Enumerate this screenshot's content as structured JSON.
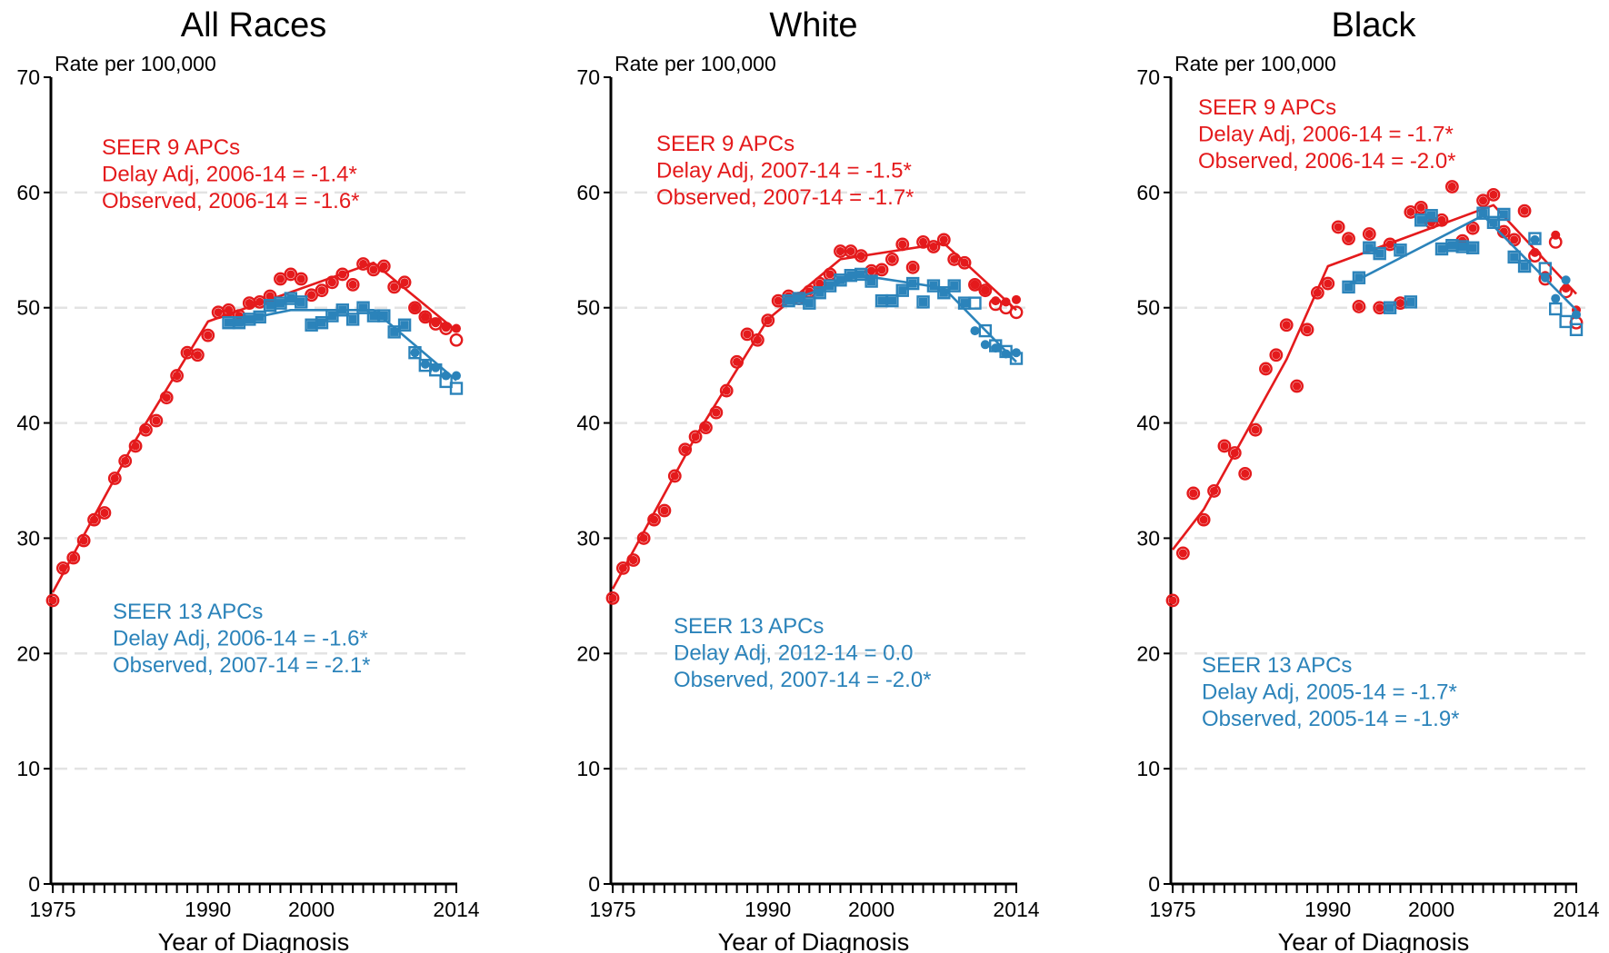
{
  "chart_data": [
    {
      "type": "line",
      "title": "All Races",
      "ylabel": "Rate per 100,000",
      "xlabel": "Year of Diagnosis",
      "xlim": [
        1975,
        2014
      ],
      "ylim": [
        0,
        70
      ],
      "x_ticks": [
        "1975",
        "1990",
        "2000",
        "2014"
      ],
      "y_ticks": [
        "0",
        "10",
        "20",
        "30",
        "40",
        "50",
        "60",
        "70"
      ],
      "grid": true,
      "colors": {
        "seer9": "#e41a1c",
        "seer13": "#2b83ba"
      },
      "annotations": {
        "seer9": [
          "SEER 9 APCs",
          "Delay Adj, 2006-14 = -1.4*",
          "Observed, 2006-14 = -1.6*"
        ],
        "seer13": [
          "SEER 13 APCs",
          "Delay Adj, 2006-14 = -1.6*",
          "Observed, 2007-14 = -2.1*"
        ]
      },
      "series": [
        {
          "key": "seer9_observed",
          "marker": "circle",
          "x": [
            1975,
            1976,
            1977,
            1978,
            1979,
            1980,
            1981,
            1982,
            1983,
            1984,
            1985,
            1986,
            1987,
            1988,
            1989,
            1990,
            1991,
            1992,
            1993,
            1994,
            1995,
            1996,
            1997,
            1998,
            1999,
            2000,
            2001,
            2002,
            2003,
            2004,
            2005,
            2006,
            2007,
            2008,
            2009,
            2010,
            2011,
            2012,
            2013,
            2014
          ],
          "y": [
            24.6,
            27.4,
            28.3,
            29.8,
            31.6,
            32.2,
            35.2,
            36.7,
            38.0,
            39.4,
            40.2,
            42.2,
            44.1,
            46.1,
            45.9,
            47.6,
            49.6,
            49.8,
            49.3,
            50.4,
            50.5,
            51.0,
            52.5,
            52.9,
            52.5,
            51.1,
            51.5,
            52.2,
            52.9,
            52.0,
            53.8,
            53.3,
            53.6,
            51.8,
            52.2,
            50.0,
            49.2,
            48.6,
            48.2,
            47.2
          ]
        },
        {
          "key": "seer9_delay_adj",
          "marker": "dot",
          "x": [
            2010,
            2011,
            2012,
            2013,
            2014
          ],
          "y": [
            50.0,
            49.2,
            48.7,
            48.3,
            48.2
          ]
        },
        {
          "key": "seer9_fit",
          "marker": "none",
          "x": [
            1975,
            1983,
            1990,
            2006,
            2014
          ],
          "y": [
            25.3,
            38.5,
            48.8,
            53.9,
            48.0
          ]
        },
        {
          "key": "seer13_observed",
          "marker": "square",
          "x": [
            1992,
            1993,
            1994,
            1995,
            1996,
            1997,
            1998,
            1999,
            2000,
            2001,
            2002,
            2003,
            2004,
            2005,
            2006,
            2007,
            2008,
            2009,
            2010,
            2011,
            2012,
            2013,
            2014
          ],
          "y": [
            48.7,
            48.7,
            49.0,
            49.2,
            50.2,
            50.4,
            50.8,
            50.5,
            48.5,
            48.7,
            49.3,
            49.8,
            49.0,
            50.0,
            49.3,
            49.3,
            47.9,
            48.5,
            46.1,
            45.0,
            44.6,
            43.6,
            43.0
          ]
        },
        {
          "key": "seer13_delay_adj",
          "marker": "dot",
          "x": [
            2010,
            2011,
            2012,
            2013,
            2014
          ],
          "y": [
            46.1,
            45.1,
            44.8,
            44.1,
            44.1
          ]
        },
        {
          "key": "seer13_fit",
          "marker": "none",
          "x": [
            1992,
            1998,
            2006,
            2014
          ],
          "y": [
            48.7,
            49.8,
            49.8,
            43.7
          ]
        }
      ]
    },
    {
      "type": "line",
      "title": "White",
      "ylabel": "Rate per 100,000",
      "xlabel": "Year of Diagnosis",
      "xlim": [
        1975,
        2014
      ],
      "ylim": [
        0,
        70
      ],
      "x_ticks": [
        "1975",
        "1990",
        "2000",
        "2014"
      ],
      "y_ticks": [
        "0",
        "10",
        "20",
        "30",
        "40",
        "50",
        "60",
        "70"
      ],
      "grid": true,
      "colors": {
        "seer9": "#e41a1c",
        "seer13": "#2b83ba"
      },
      "annotations": {
        "seer9": [
          "SEER 9 APCs",
          "Delay Adj, 2007-14 = -1.5*",
          "Observed, 2007-14 = -1.7*"
        ],
        "seer13": [
          "SEER 13 APCs",
          "Delay Adj, 2012-14 = 0.0",
          "Observed, 2007-14 = -2.0*"
        ]
      },
      "series": [
        {
          "key": "seer9_observed",
          "marker": "circle",
          "x": [
            1975,
            1976,
            1977,
            1978,
            1979,
            1980,
            1981,
            1982,
            1983,
            1984,
            1985,
            1986,
            1987,
            1988,
            1989,
            1990,
            1991,
            1992,
            1993,
            1994,
            1995,
            1996,
            1997,
            1998,
            1999,
            2000,
            2001,
            2002,
            2003,
            2004,
            2005,
            2006,
            2007,
            2008,
            2009,
            2010,
            2011,
            2012,
            2013,
            2014
          ],
          "y": [
            24.8,
            27.4,
            28.1,
            30.0,
            31.6,
            32.4,
            35.4,
            37.7,
            38.8,
            39.6,
            40.9,
            42.8,
            45.3,
            47.7,
            47.2,
            48.9,
            50.6,
            51.0,
            50.8,
            51.4,
            52.1,
            52.9,
            54.9,
            54.9,
            54.5,
            53.2,
            53.3,
            54.2,
            55.5,
            53.5,
            55.7,
            55.3,
            55.9,
            54.2,
            53.9,
            52.0,
            51.5,
            50.3,
            50.0,
            49.6
          ]
        },
        {
          "key": "seer9_delay_adj",
          "marker": "dot",
          "x": [
            2010,
            2011,
            2012,
            2013,
            2014
          ],
          "y": [
            52.0,
            51.5,
            50.6,
            50.5,
            50.7
          ]
        },
        {
          "key": "seer9_fit",
          "marker": "none",
          "x": [
            1975,
            1983,
            1990,
            1997,
            2007,
            2014
          ],
          "y": [
            25.6,
            38.8,
            49.0,
            54.2,
            55.6,
            49.8
          ]
        },
        {
          "key": "seer13_observed",
          "marker": "square",
          "x": [
            1992,
            1993,
            1994,
            1995,
            1996,
            1997,
            1998,
            1999,
            2000,
            2001,
            2002,
            2003,
            2004,
            2005,
            2006,
            2007,
            2008,
            2009,
            2010,
            2011,
            2012,
            2013,
            2014
          ],
          "y": [
            50.6,
            50.8,
            50.4,
            51.3,
            51.9,
            52.4,
            52.8,
            52.9,
            52.3,
            50.6,
            50.6,
            51.5,
            52.1,
            50.5,
            51.9,
            51.3,
            51.9,
            50.4,
            50.4,
            48.0,
            46.7,
            46.2,
            45.6
          ]
        },
        {
          "key": "seer13_delay_adj",
          "marker": "dot",
          "x": [
            2010,
            2011,
            2012,
            2013,
            2014
          ],
          "y": [
            48.0,
            46.8,
            46.5,
            46.0,
            46.1
          ]
        },
        {
          "key": "seer13_fit",
          "marker": "none",
          "x": [
            1992,
            1999,
            2007,
            2014
          ],
          "y": [
            50.6,
            52.8,
            51.7,
            45.3
          ]
        }
      ]
    },
    {
      "type": "line",
      "title": "Black",
      "ylabel": "Rate per 100,000",
      "xlabel": "Year of Diagnosis",
      "xlim": [
        1975,
        2014
      ],
      "ylim": [
        0,
        70
      ],
      "x_ticks": [
        "1975",
        "1990",
        "2000",
        "2014"
      ],
      "y_ticks": [
        "0",
        "10",
        "20",
        "30",
        "40",
        "50",
        "60",
        "70"
      ],
      "grid": true,
      "colors": {
        "seer9": "#e41a1c",
        "seer13": "#2b83ba"
      },
      "annotations": {
        "seer9": [
          "SEER 9 APCs",
          "Delay Adj, 2006-14 = -1.7*",
          "Observed, 2006-14 = -2.0*"
        ],
        "seer13": [
          "SEER 13 APCs",
          "Delay Adj, 2005-14 = -1.7*",
          "Observed, 2005-14 = -1.9*"
        ]
      },
      "series": [
        {
          "key": "seer9_observed",
          "marker": "circle",
          "x": [
            1975,
            1976,
            1977,
            1978,
            1979,
            1980,
            1981,
            1982,
            1983,
            1984,
            1985,
            1986,
            1987,
            1988,
            1989,
            1990,
            1991,
            1992,
            1993,
            1994,
            1995,
            1996,
            1997,
            1998,
            1999,
            2000,
            2001,
            2002,
            2003,
            2004,
            2005,
            2006,
            2007,
            2008,
            2009,
            2010,
            2011,
            2012,
            2013,
            2014
          ],
          "y": [
            24.6,
            28.7,
            33.9,
            31.6,
            34.1,
            38.0,
            37.4,
            35.6,
            39.4,
            44.7,
            45.9,
            48.5,
            43.2,
            48.1,
            51.3,
            52.1,
            57.0,
            56.0,
            50.1,
            56.4,
            50.0,
            55.5,
            50.4,
            58.3,
            58.7,
            57.4,
            57.6,
            60.5,
            55.8,
            56.9,
            59.3,
            59.8,
            56.6,
            55.9,
            58.4,
            54.5,
            52.5,
            55.7,
            51.4,
            48.7
          ]
        },
        {
          "key": "seer9_delay_adj",
          "marker": "dot",
          "x": [
            2010,
            2011,
            2012,
            2013,
            2014
          ],
          "y": [
            54.8,
            52.8,
            56.3,
            51.7,
            49.8
          ]
        },
        {
          "key": "seer9_fit",
          "marker": "none",
          "x": [
            1975,
            1978,
            1986,
            1990,
            2006,
            2014
          ],
          "y": [
            29.0,
            32.5,
            45.5,
            53.6,
            58.9,
            51.2
          ]
        },
        {
          "key": "seer13_observed",
          "marker": "square",
          "x": [
            1992,
            1993,
            1994,
            1995,
            1996,
            1997,
            1998,
            1999,
            2000,
            2001,
            2002,
            2003,
            2004,
            2005,
            2006,
            2007,
            2008,
            2009,
            2010,
            2011,
            2012,
            2013,
            2014
          ],
          "y": [
            51.8,
            52.6,
            55.2,
            54.7,
            50.0,
            55.0,
            50.5,
            57.6,
            58.0,
            55.1,
            55.4,
            55.3,
            55.2,
            58.2,
            57.4,
            58.1,
            54.4,
            53.6,
            56.0,
            53.4,
            49.9,
            48.8,
            48.1
          ]
        },
        {
          "key": "seer13_delay_adj",
          "marker": "dot",
          "x": [
            2010,
            2011,
            2012,
            2013,
            2014
          ],
          "y": [
            55.9,
            52.6,
            50.8,
            52.4,
            49.4
          ]
        },
        {
          "key": "seer13_fit",
          "marker": "none",
          "x": [
            1992,
            2005,
            2014
          ],
          "y": [
            52.0,
            58.0,
            49.8
          ]
        }
      ]
    }
  ]
}
